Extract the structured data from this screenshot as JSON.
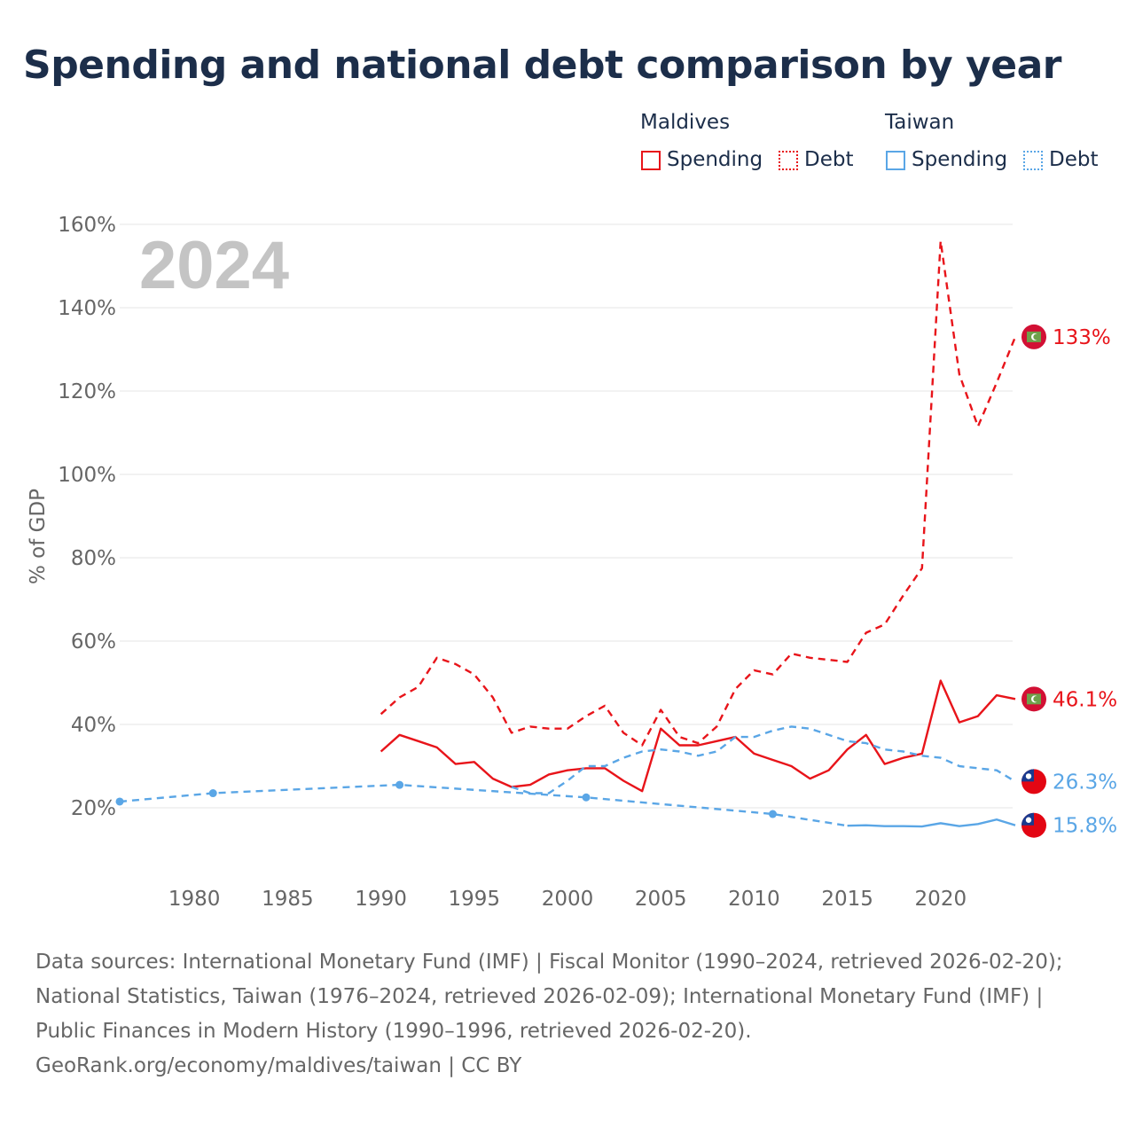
{
  "title": "Spending and national debt comparison by year",
  "legend": {
    "groups": [
      {
        "name": "Maldives",
        "color": "#e8141a",
        "items": [
          "Spending",
          "Debt"
        ]
      },
      {
        "name": "Taiwan",
        "color": "#5aa6e6",
        "items": [
          "Spending",
          "Debt"
        ]
      }
    ]
  },
  "chart_data": {
    "type": "line",
    "year_label": "2024",
    "xlabel": "",
    "ylabel": "% of GDP",
    "xlim": [
      1976,
      2024
    ],
    "ylim": [
      10,
      160
    ],
    "x_ticks": [
      "1980",
      "1985",
      "1990",
      "1995",
      "2000",
      "2005",
      "2010",
      "2015",
      "2020"
    ],
    "y_ticks": [
      "20%",
      "40%",
      "60%",
      "80%",
      "100%",
      "120%",
      "140%",
      "160%"
    ],
    "grid": true,
    "series": [
      {
        "name": "Maldives Debt",
        "country": "Maldives",
        "metric": "Debt",
        "color": "#e8141a",
        "style": "dashed",
        "end_label": "133%",
        "x": [
          1990,
          1991,
          1992,
          1993,
          1994,
          1995,
          1996,
          1997,
          1998,
          1999,
          2000,
          2001,
          2002,
          2003,
          2004,
          2005,
          2006,
          2007,
          2008,
          2009,
          2010,
          2011,
          2012,
          2013,
          2014,
          2015,
          2016,
          2017,
          2018,
          2019,
          2020,
          2021,
          2022,
          2023,
          2024
        ],
        "y": [
          42.5,
          46.5,
          49,
          56,
          54.5,
          52,
          46.5,
          38,
          39.5,
          39,
          39,
          42,
          44.5,
          38,
          35,
          43.5,
          37,
          35.5,
          39.5,
          48.5,
          53,
          52,
          57,
          56,
          55.5,
          55,
          62,
          64,
          71,
          77.5,
          156,
          124,
          111.5,
          122,
          133
        ]
      },
      {
        "name": "Maldives Spending",
        "country": "Maldives",
        "metric": "Spending",
        "color": "#e8141a",
        "style": "solid",
        "end_label": "46.1%",
        "x": [
          1990,
          1991,
          1992,
          1993,
          1994,
          1995,
          1996,
          1997,
          1998,
          1999,
          2000,
          2001,
          2002,
          2003,
          2004,
          2005,
          2006,
          2007,
          2008,
          2009,
          2010,
          2011,
          2012,
          2013,
          2014,
          2015,
          2016,
          2017,
          2018,
          2019,
          2020,
          2021,
          2022,
          2023,
          2024
        ],
        "y": [
          33.5,
          37.5,
          36,
          34.5,
          30.5,
          31,
          27,
          25,
          25.5,
          28,
          29,
          29.5,
          29.5,
          26.5,
          24,
          39,
          35,
          35,
          36,
          37,
          33,
          31.5,
          30,
          27,
          29,
          34,
          37.5,
          30.5,
          32,
          33,
          50.5,
          40.5,
          42,
          47,
          46.1
        ]
      },
      {
        "name": "Taiwan Debt",
        "country": "Taiwan",
        "metric": "Debt",
        "color": "#5aa6e6",
        "style": "dashed",
        "end_label": "26.3%",
        "x": [
          1997,
          1998,
          1999,
          2000,
          2001,
          2002,
          2003,
          2004,
          2005,
          2006,
          2007,
          2008,
          2009,
          2010,
          2011,
          2012,
          2013,
          2014,
          2015,
          2016,
          2017,
          2018,
          2019,
          2020,
          2021,
          2022,
          2023,
          2024
        ],
        "y": [
          25,
          23.5,
          23.5,
          26.5,
          30,
          30,
          32,
          33.5,
          34,
          33.5,
          32.5,
          33.5,
          37,
          37,
          38.5,
          39.5,
          39,
          37.5,
          36,
          35.5,
          34,
          33.5,
          32.5,
          32,
          30,
          29.5,
          29,
          26.3
        ]
      },
      {
        "name": "Taiwan Spending",
        "country": "Taiwan",
        "metric": "Spending",
        "color": "#5aa6e6",
        "style": "dashed-dots",
        "end_label": "15.8%",
        "x": [
          1976,
          1981,
          1991,
          2001,
          2011,
          2015,
          2016,
          2017,
          2018,
          2019,
          2020,
          2021,
          2022,
          2023,
          2024
        ],
        "y": [
          21.5,
          23.5,
          25.5,
          22.5,
          18.5,
          15.7,
          15.8,
          15.6,
          15.6,
          15.5,
          16.3,
          15.6,
          16.1,
          17.2,
          15.8
        ],
        "dashed_until": 2015,
        "dot_years": [
          1976,
          1981,
          1991,
          2001,
          2011
        ]
      }
    ]
  },
  "sources": [
    "Data sources: International Monetary Fund (IMF) | Fiscal Monitor (1990–2024, retrieved 2026-02-20);",
    "National Statistics, Taiwan (1976–2024, retrieved 2026-02-09); International Monetary Fund (IMF) |",
    "Public Finances in Modern History (1990–1996, retrieved 2026-02-20).",
    "GeoRank.org/economy/maldives/taiwan | CC BY"
  ],
  "icons": {
    "maldives_flag": "maldives-flag-icon",
    "taiwan_flag": "taiwan-flag-icon"
  }
}
